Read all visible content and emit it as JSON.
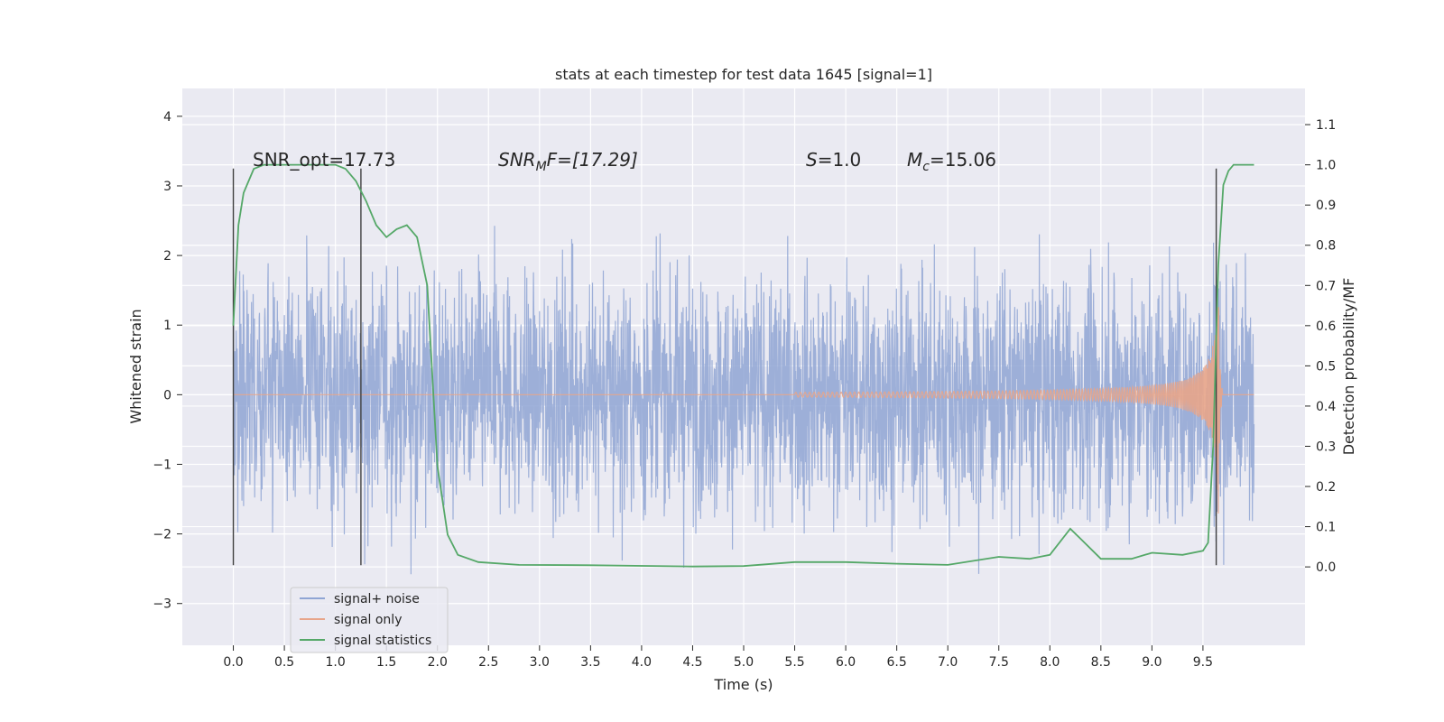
{
  "chart_data": {
    "type": "line",
    "title": "stats at each timestep for test data 1645 [signal=1]",
    "xlabel": "Time (s)",
    "ylabel_left": "Whitened strain",
    "ylabel_right": "Detection probability/MF",
    "xlim": [
      -0.5,
      10.5
    ],
    "ylim_left": [
      -3.6,
      4.4
    ],
    "ylim_right": [
      -0.195,
      1.19
    ],
    "xticks": [
      "0.0",
      "0.5",
      "1.0",
      "1.5",
      "2.0",
      "2.5",
      "3.0",
      "3.5",
      "4.0",
      "4.5",
      "5.0",
      "5.5",
      "6.0",
      "6.5",
      "7.0",
      "7.5",
      "8.0",
      "8.5",
      "9.0",
      "9.5"
    ],
    "yticks_left": [
      "4",
      "3",
      "2",
      "1",
      "0",
      "−1",
      "−2",
      "−3"
    ],
    "yticks_right": [
      "1.1",
      "1.0",
      "0.9",
      "0.8",
      "0.7",
      "0.6",
      "0.5",
      "0.4",
      "0.3",
      "0.2",
      "0.1",
      "0.0"
    ],
    "grid": true,
    "legend_position": "lower-left",
    "annotations": {
      "snr_opt": "SNR_opt=17.73",
      "snr_mf_base": "SNR",
      "snr_mf_sub": "M",
      "snr_mf_rest": "F=[17.29]",
      "s_var": "S",
      "s_rest": "=1.0",
      "mc_var": "M",
      "mc_sub": "c",
      "mc_rest": "=15.06"
    },
    "vertical_markers": [
      0.0,
      1.25,
      9.63
    ],
    "series": [
      {
        "name": "signal+ noise",
        "axis": "left",
        "color": "#8fa5d4",
        "noise_std": 0.85,
        "extent": [
          0.0,
          10.0
        ]
      },
      {
        "name": "signal only",
        "axis": "left",
        "color": "#e8a58a",
        "chirp_start": 5.5,
        "merger_time": 9.65,
        "peak_amplitude": 1.9
      },
      {
        "name": "signal statistics",
        "axis": "right",
        "color": "#55a868",
        "x": [
          0.0,
          0.05,
          0.1,
          0.2,
          0.3,
          0.5,
          0.7,
          0.9,
          1.0,
          1.1,
          1.2,
          1.3,
          1.4,
          1.5,
          1.6,
          1.7,
          1.8,
          1.9,
          2.0,
          2.1,
          2.2,
          2.4,
          2.8,
          3.5,
          4.5,
          5.0,
          5.5,
          6.0,
          6.5,
          7.0,
          7.5,
          7.8,
          8.0,
          8.2,
          8.3,
          8.5,
          8.8,
          9.0,
          9.3,
          9.5,
          9.55,
          9.6,
          9.65,
          9.7,
          9.75,
          9.8,
          9.9,
          10.0
        ],
        "y": [
          0.6,
          0.85,
          0.93,
          0.99,
          1.0,
          1.0,
          1.0,
          1.0,
          1.0,
          0.99,
          0.96,
          0.91,
          0.85,
          0.82,
          0.84,
          0.85,
          0.82,
          0.7,
          0.25,
          0.08,
          0.03,
          0.012,
          0.005,
          0.004,
          0.001,
          0.002,
          0.012,
          0.012,
          0.008,
          0.005,
          0.025,
          0.02,
          0.03,
          0.095,
          0.07,
          0.02,
          0.02,
          0.035,
          0.03,
          0.04,
          0.06,
          0.3,
          0.75,
          0.95,
          0.985,
          1.0,
          1.0,
          1.0
        ]
      }
    ]
  }
}
